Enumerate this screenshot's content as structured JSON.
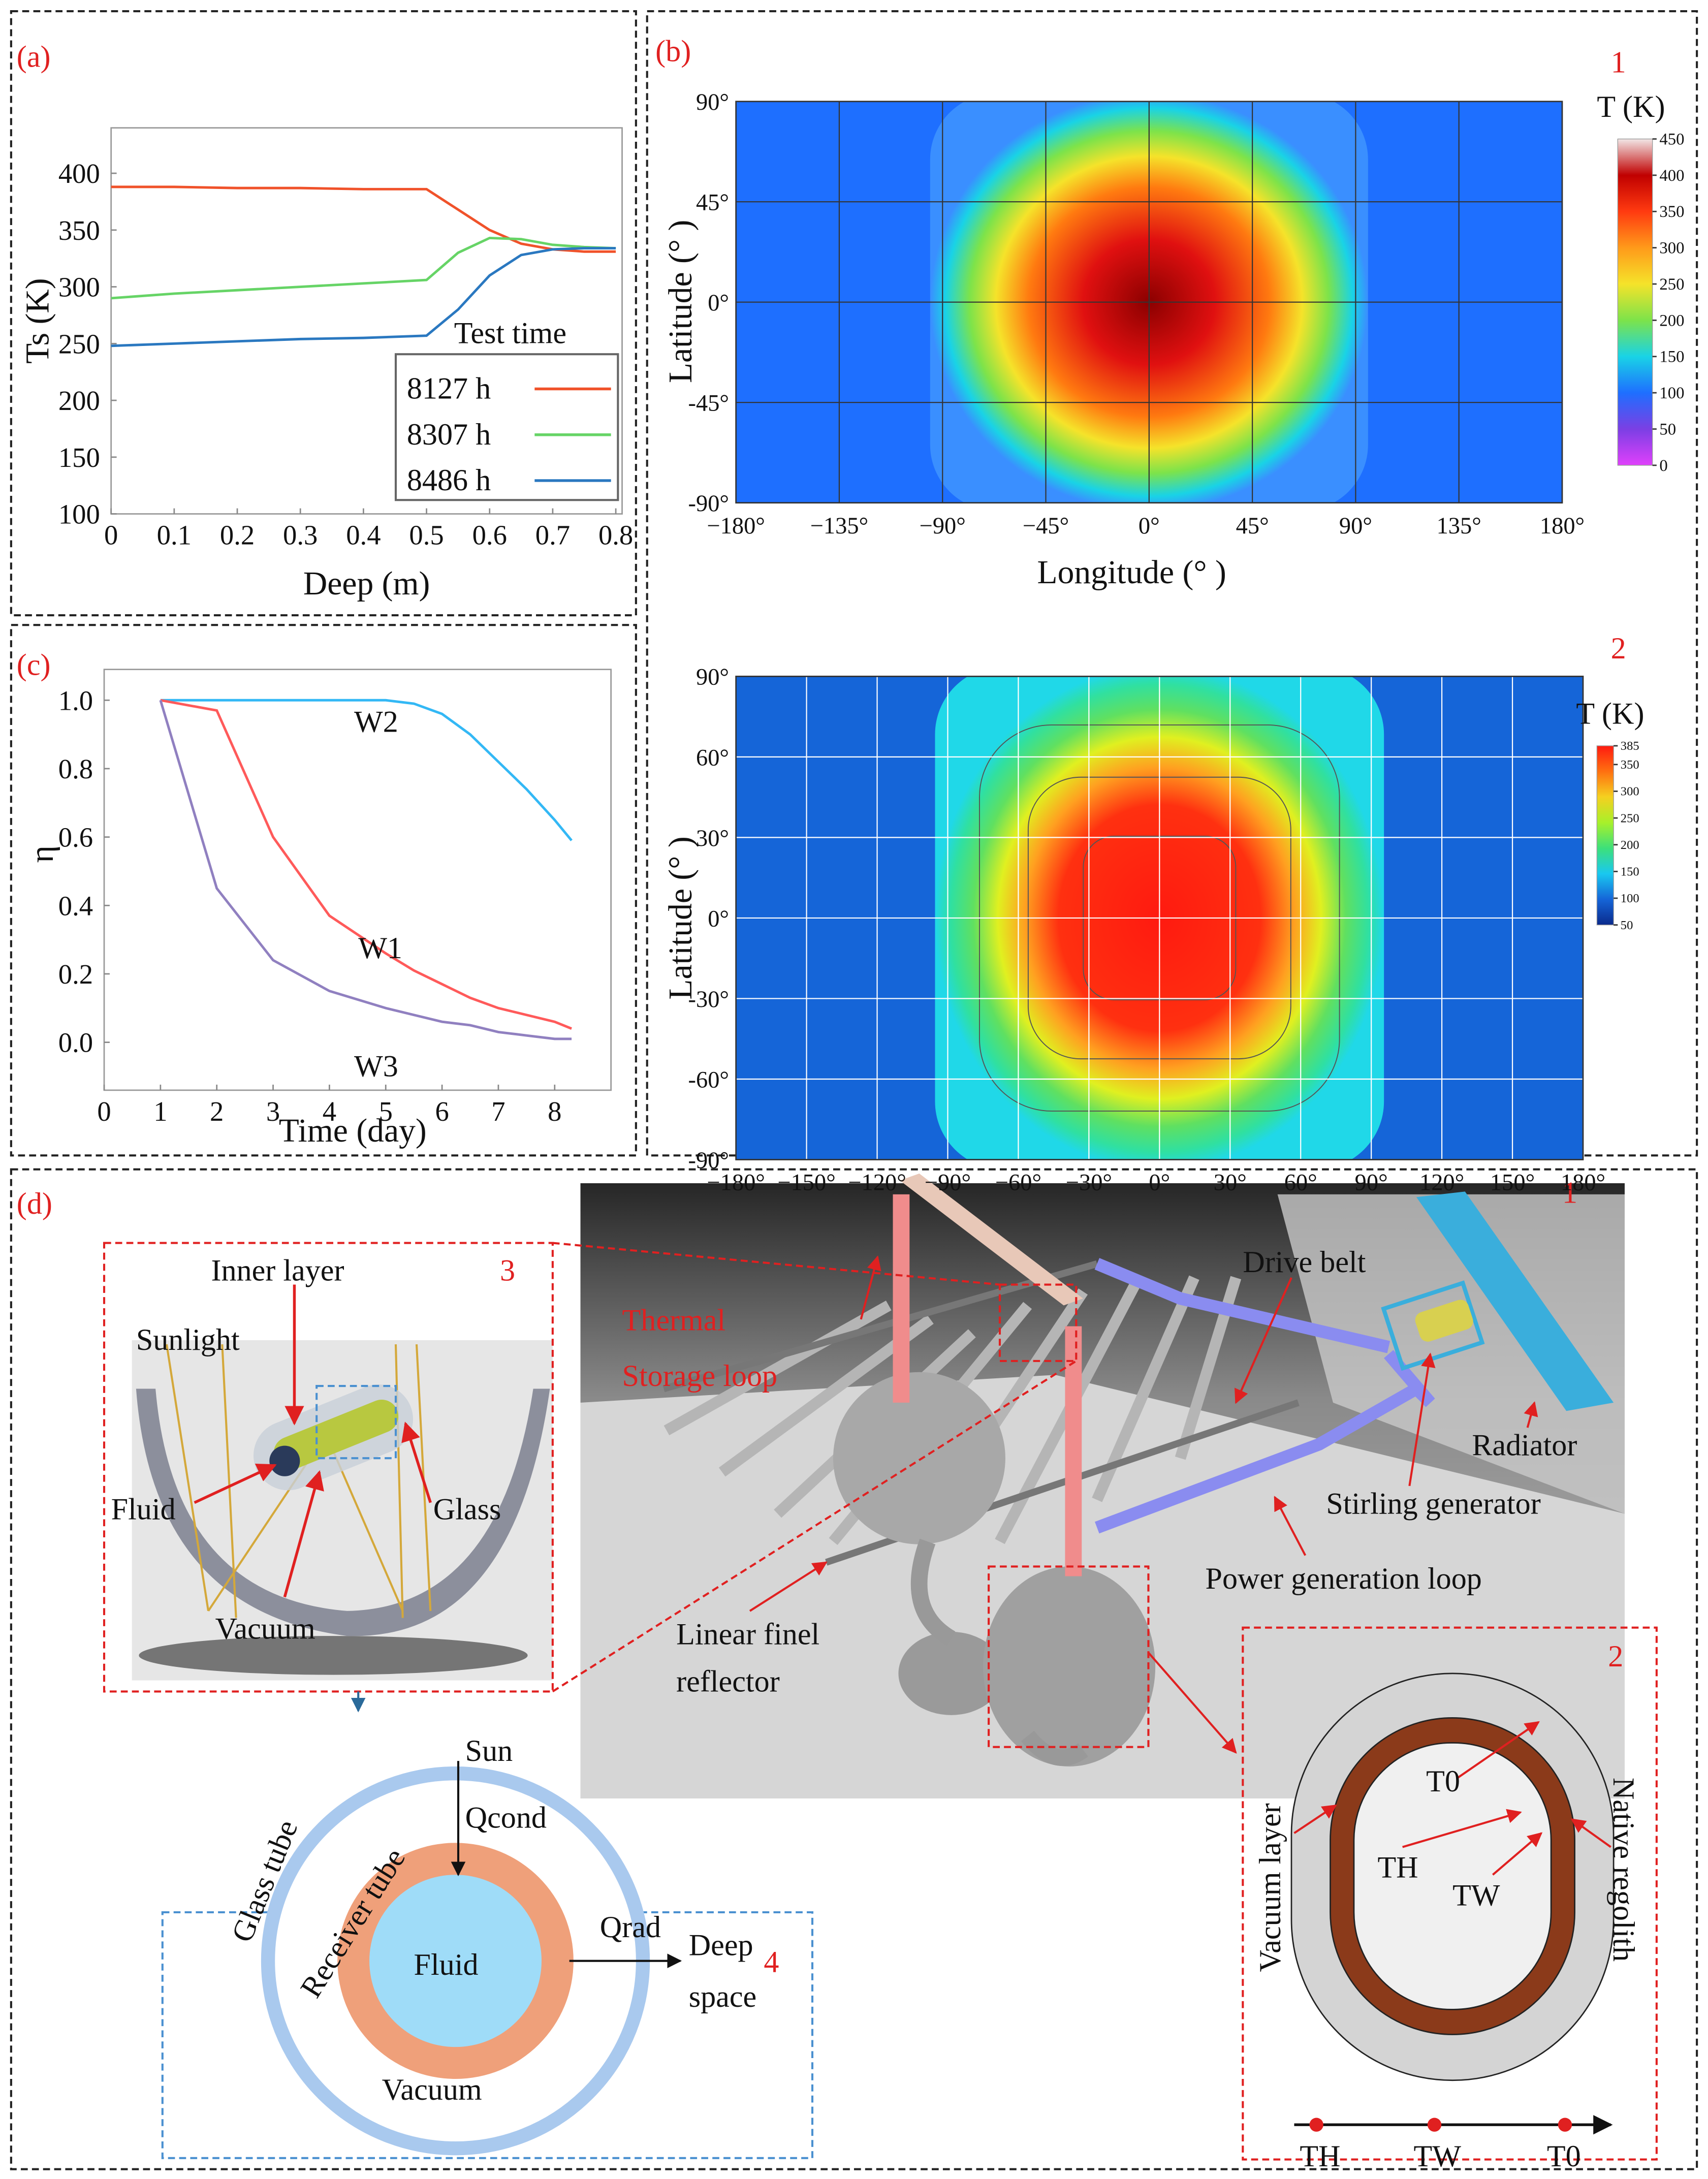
{
  "chart_data": [
    {
      "type": "line",
      "panel_label": "(a)",
      "x_label": "Deep (m)",
      "y_label": "Ts (K)",
      "x": [
        0,
        0.1,
        0.2,
        0.3,
        0.4,
        0.5,
        0.55,
        0.6,
        0.65,
        0.7,
        0.75,
        0.8
      ],
      "xlim": [
        0,
        0.81
      ],
      "xticks": [
        0,
        0.1,
        0.2,
        0.3,
        0.4,
        0.5,
        0.6,
        0.7,
        0.8
      ],
      "ylim": [
        100,
        440
      ],
      "yticks": [
        100,
        150,
        200,
        250,
        300,
        350,
        400
      ],
      "legend": "lower right",
      "legend_title": "Test time",
      "series": [
        {
          "name": "8127 h",
          "color": "#f0522a",
          "values": [
            388,
            388,
            387,
            387,
            386,
            386,
            368,
            350,
            338,
            333,
            331,
            331
          ]
        },
        {
          "name": "8307 h",
          "color": "#66d466",
          "values": [
            290,
            294,
            297,
            300,
            303,
            306,
            330,
            343,
            342,
            337,
            335,
            334
          ]
        },
        {
          "name": "8486 h",
          "color": "#2a78c0",
          "values": [
            248,
            250,
            252,
            254,
            255,
            257,
            280,
            310,
            328,
            333,
            334,
            334
          ]
        }
      ]
    },
    {
      "type": "heatmap",
      "panel_label": "(b)",
      "sub_label": "1",
      "x_label": "Longitude (°  )",
      "y_label": "Latitude (°  )",
      "xlim": [
        -180,
        180
      ],
      "xticks": [
        {
          "value": -180,
          "label": "−180°"
        },
        {
          "value": -135,
          "label": "−135°"
        },
        {
          "value": -90,
          "label": "−90°"
        },
        {
          "value": -45,
          "label": "−45°"
        },
        {
          "value": 0,
          "label": "0°"
        },
        {
          "value": 45,
          "label": "45°"
        },
        {
          "value": 90,
          "label": "90°"
        },
        {
          "value": 135,
          "label": "135°"
        },
        {
          "value": 180,
          "label": "180°"
        }
      ],
      "ylim": [
        -90,
        90
      ],
      "yticks": [
        {
          "value": -90,
          "label": "-90°"
        },
        {
          "value": -45,
          "label": "-45°"
        },
        {
          "value": 0,
          "label": "0°"
        },
        {
          "value": 45,
          "label": "45°"
        },
        {
          "value": 90,
          "label": "90°"
        }
      ],
      "grid": true,
      "grid_color": "#333333",
      "colorbar": {
        "title": "T (K)",
        "lim": [
          0,
          450
        ],
        "ticks": [
          0,
          50,
          100,
          150,
          200,
          250,
          300,
          350,
          400,
          450
        ],
        "colors": [
          "#e040fb",
          "#7b3fe4",
          "#1e6fff",
          "#19d3e6",
          "#7de34a",
          "#f5e32a",
          "#ff9a1a",
          "#ff3a10",
          "#c00000",
          "#f2e6e6"
        ]
      }
    },
    {
      "type": "heatmap",
      "sub_label": "2",
      "x_label": "Longitude (°  )",
      "y_label": "Latitude (°  )",
      "xlim": [
        -180,
        180
      ],
      "xticks": [
        {
          "value": -180,
          "label": "−180°"
        },
        {
          "value": -150,
          "label": "−150°"
        },
        {
          "value": -120,
          "label": "−120°"
        },
        {
          "value": -90,
          "label": "−90°"
        },
        {
          "value": -60,
          "label": "−60°"
        },
        {
          "value": -30,
          "label": "−30°"
        },
        {
          "value": 0,
          "label": "0°"
        },
        {
          "value": 30,
          "label": "30°"
        },
        {
          "value": 60,
          "label": "60°"
        },
        {
          "value": 90,
          "label": "90°"
        },
        {
          "value": 120,
          "label": "120°"
        },
        {
          "value": 150,
          "label": "150°"
        },
        {
          "value": 180,
          "label": "180°"
        }
      ],
      "ylim": [
        -90,
        90
      ],
      "yticks": [
        {
          "value": -90,
          "label": "-90°"
        },
        {
          "value": -60,
          "label": "-60°"
        },
        {
          "value": -30,
          "label": "-30°"
        },
        {
          "value": 0,
          "label": "0°"
        },
        {
          "value": 30,
          "label": "30°"
        },
        {
          "value": 60,
          "label": "60°"
        },
        {
          "value": 90,
          "label": "90°"
        }
      ],
      "grid": true,
      "grid_color": "#ffffff",
      "colorbar": {
        "title": "T (K)",
        "lim": [
          50,
          385
        ],
        "ticks": [
          50,
          100,
          150,
          200,
          250,
          300,
          350,
          385
        ],
        "colors": [
          "#0a2a8c",
          "#1565d8",
          "#19c8f0",
          "#3de07a",
          "#a8f02a",
          "#f5d020",
          "#ff7010",
          "#ff1a10"
        ]
      }
    },
    {
      "type": "line",
      "panel_label": "(c)",
      "x_label": "Time (day)",
      "y_label": "η",
      "x": [
        1.0,
        2,
        3,
        4,
        5,
        5.5,
        6,
        6.5,
        7,
        7.5,
        8,
        8.3
      ],
      "xlim": [
        0,
        9
      ],
      "xticks": [
        0,
        1,
        2,
        3,
        4,
        5,
        6,
        7,
        8
      ],
      "ylim": [
        -0.14,
        1.09
      ],
      "yticks": [
        {
          "value": 0,
          "label": "0.0"
        },
        {
          "value": 0.2,
          "label": "0.2"
        },
        {
          "value": 0.4,
          "label": "0.4"
        },
        {
          "value": 0.6,
          "label": "0.6"
        },
        {
          "value": 0.8,
          "label": "0.8"
        },
        {
          "value": 1,
          "label": "1.0"
        }
      ],
      "legend": "inline",
      "series": [
        {
          "name": "W2",
          "color": "#33b8f5",
          "values": [
            1,
            1,
            1,
            1,
            1,
            0.99,
            0.96,
            0.9,
            0.82,
            0.74,
            0.65,
            0.59
          ]
        },
        {
          "name": "W1",
          "color": "#ff5a5a",
          "values": [
            1,
            0.97,
            0.6,
            0.37,
            0.26,
            0.21,
            0.17,
            0.13,
            0.1,
            0.08,
            0.06,
            0.04
          ]
        },
        {
          "name": "W3",
          "color": "#9080c0",
          "values": [
            1,
            0.45,
            0.24,
            0.15,
            0.1,
            0.08,
            0.06,
            0.05,
            0.03,
            0.02,
            0.01,
            0.01
          ]
        }
      ]
    }
  ],
  "diagram": {
    "panel_label": "(d)",
    "scene": {
      "number": "1",
      "labels": [
        "Thermal",
        "Storage loop",
        "Drive belt",
        "Radiator",
        "Stirling generator",
        "Power generation loop",
        "Linear finel",
        "reflector"
      ]
    },
    "collector": {
      "number": "3",
      "labels": [
        "Inner layer",
        "Sunlight",
        "Fluid",
        "Glass",
        "Vacuum"
      ]
    },
    "cross_section": {
      "number": "4",
      "labels": [
        "Sun",
        "Qcond",
        "Glass tube",
        "Receiver tube",
        "Fluid",
        "Qrad",
        "Deep",
        "space",
        "Vacuum"
      ]
    },
    "storage": {
      "number": "2",
      "labels": [
        "T0",
        "TH",
        "TW",
        "Vacuum layer",
        "Native regolith",
        "TH",
        "TW",
        "T0"
      ]
    }
  }
}
